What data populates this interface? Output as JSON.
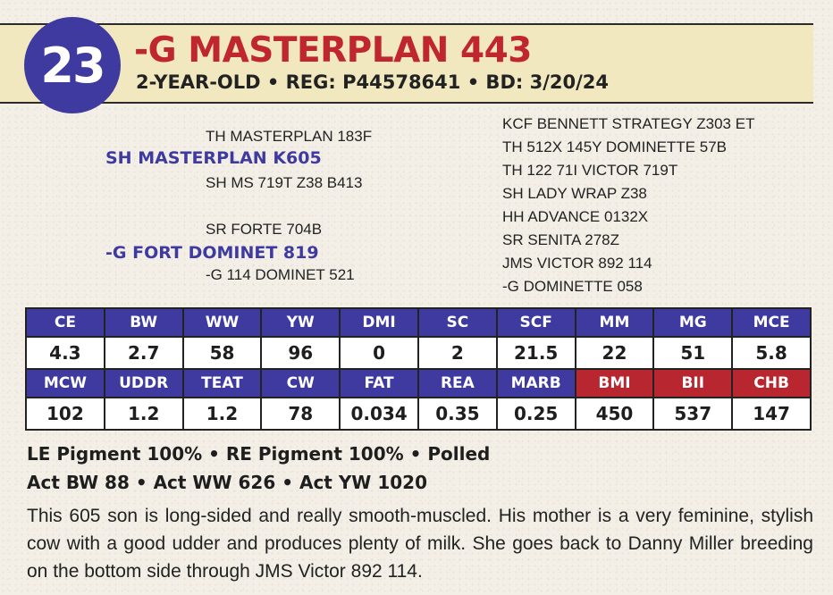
{
  "lot": {
    "number": "23"
  },
  "animal": {
    "name": "-G MASTERPLAN 443",
    "subtitle": "2-YEAR-OLD • REG: P44578641 • BD: 3/20/24"
  },
  "pedigree": {
    "sire_sire": "TH MASTERPLAN 183F",
    "sire": "SH MASTERPLAN K605",
    "sire_dam": "SH MS 719T Z38 B413",
    "dam_sire": "SR FORTE 704B",
    "dam": "-G FORT DOMINET 819",
    "dam_dam": "-G 114 DOMINET 521",
    "extended": [
      "KCF BENNETT STRATEGY Z303 ET",
      "TH 512X 145Y DOMINETTE 57B",
      "TH 122 71I VICTOR 719T",
      "SH LADY WRAP Z38",
      "HH ADVANCE 0132X",
      "SR SENITA 278Z",
      "JMS VICTOR 892 114",
      "-G DOMINETTE 058"
    ]
  },
  "epd": {
    "row1_headers": [
      "CE",
      "BW",
      "WW",
      "YW",
      "DMI",
      "SC",
      "SCF",
      "MM",
      "MG",
      "MCE"
    ],
    "row1_values": [
      "4.3",
      "2.7",
      "58",
      "96",
      "0",
      "2",
      "21.5",
      "22",
      "51",
      "5.8"
    ],
    "row2_headers": [
      "MCW",
      "UDDR",
      "TEAT",
      "CW",
      "FAT",
      "REA",
      "MARB",
      "BMI",
      "BII",
      "CHB"
    ],
    "row2_values": [
      "102",
      "1.2",
      "1.2",
      "78",
      "0.034",
      "0.35",
      "0.25",
      "450",
      "537",
      "147"
    ],
    "index_header_color": "#b8272f",
    "header_color": "#3f3aa0"
  },
  "traits": {
    "line1": "LE Pigment 100% • RE Pigment 100% • Polled",
    "line2": "Act BW 88 • Act WW 626 • Act YW 1020"
  },
  "description": "This 605 son is long-sided and really smooth-muscled. His mother is a very feminine, stylish cow with a good udder and produces plenty of milk. She goes back to Danny Miller breeding on the bottom side through JMS Victor 892 114."
}
